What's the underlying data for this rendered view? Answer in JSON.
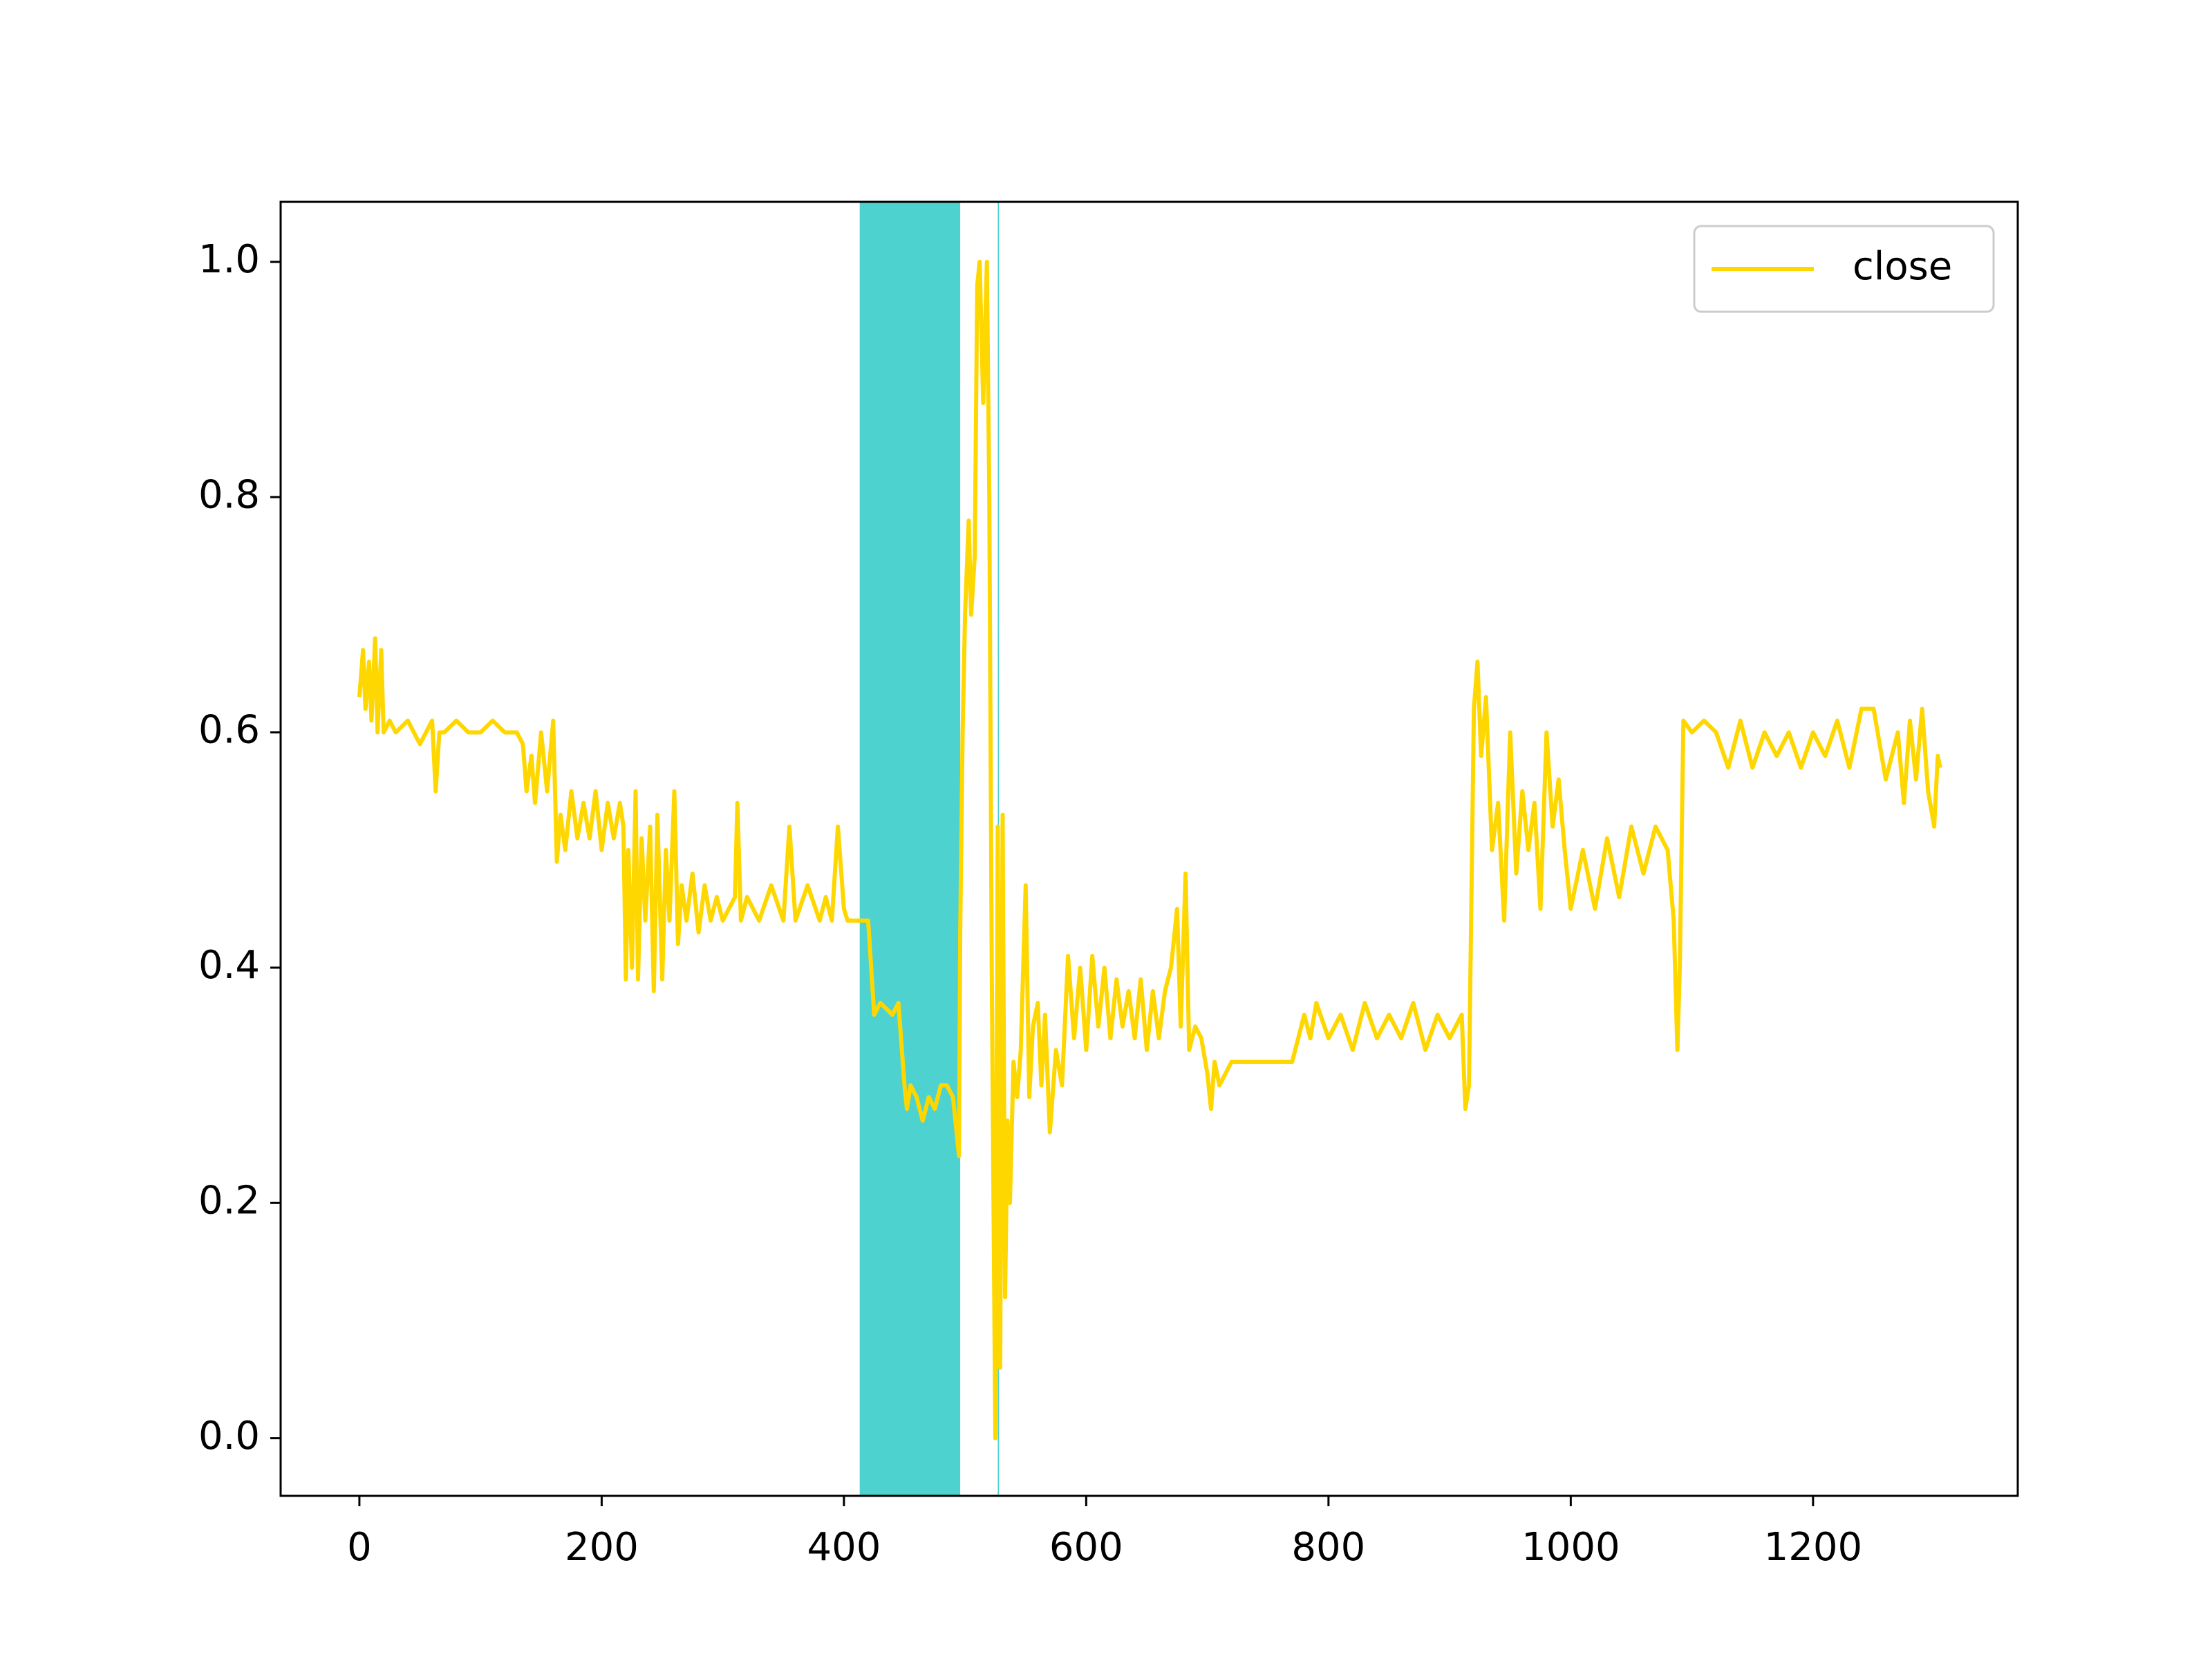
{
  "chart_data": {
    "type": "line",
    "x": [
      0,
      3,
      5,
      8,
      10,
      13,
      15,
      18,
      20,
      25,
      30,
      40,
      50,
      60,
      63,
      66,
      70,
      80,
      90,
      100,
      110,
      120,
      130,
      135,
      138,
      142,
      145,
      150,
      155,
      160,
      163,
      166,
      170,
      175,
      180,
      185,
      190,
      195,
      200,
      205,
      210,
      215,
      218,
      220,
      222,
      225,
      228,
      230,
      233,
      236,
      240,
      243,
      246,
      250,
      253,
      256,
      260,
      263,
      266,
      270,
      275,
      280,
      285,
      290,
      295,
      300,
      305,
      310,
      312,
      315,
      320,
      330,
      340,
      350,
      355,
      360,
      370,
      380,
      385,
      390,
      395,
      400,
      403,
      410,
      413,
      420,
      425,
      430,
      440,
      445,
      450,
      452,
      455,
      460,
      465,
      470,
      475,
      480,
      485,
      490,
      495,
      496,
      498,
      500,
      503,
      505,
      508,
      510,
      512,
      515,
      518,
      520,
      522,
      525,
      527,
      529,
      531,
      533,
      535,
      537,
      540,
      543,
      546,
      550,
      553,
      556,
      560,
      563,
      566,
      570,
      575,
      580,
      585,
      590,
      595,
      600,
      605,
      610,
      615,
      620,
      625,
      630,
      635,
      640,
      645,
      650,
      655,
      660,
      665,
      670,
      675,
      678,
      682,
      685,
      690,
      695,
      700,
      703,
      706,
      710,
      720,
      740,
      760,
      770,
      775,
      780,
      785,
      790,
      800,
      810,
      820,
      830,
      840,
      850,
      860,
      870,
      880,
      890,
      900,
      910,
      913,
      916,
      920,
      923,
      926,
      930,
      935,
      940,
      945,
      950,
      955,
      960,
      965,
      970,
      975,
      980,
      985,
      990,
      995,
      1000,
      1010,
      1020,
      1030,
      1040,
      1050,
      1060,
      1070,
      1080,
      1085,
      1088,
      1090,
      1093,
      1100,
      1110,
      1120,
      1130,
      1140,
      1150,
      1160,
      1170,
      1180,
      1190,
      1200,
      1210,
      1220,
      1230,
      1240,
      1250,
      1260,
      1270,
      1275,
      1280,
      1285,
      1290,
      1295,
      1300,
      1303,
      1305
    ],
    "series": [
      {
        "name": "close",
        "color": "#ffd700",
        "values": [
          0.63,
          0.67,
          0.62,
          0.66,
          0.61,
          0.68,
          0.6,
          0.67,
          0.6,
          0.61,
          0.6,
          0.61,
          0.59,
          0.61,
          0.55,
          0.6,
          0.6,
          0.61,
          0.6,
          0.6,
          0.61,
          0.6,
          0.6,
          0.59,
          0.55,
          0.58,
          0.54,
          0.6,
          0.55,
          0.61,
          0.49,
          0.53,
          0.5,
          0.55,
          0.51,
          0.54,
          0.51,
          0.55,
          0.5,
          0.54,
          0.51,
          0.54,
          0.52,
          0.39,
          0.5,
          0.4,
          0.55,
          0.39,
          0.51,
          0.44,
          0.52,
          0.38,
          0.53,
          0.39,
          0.5,
          0.44,
          0.55,
          0.42,
          0.47,
          0.44,
          0.48,
          0.43,
          0.47,
          0.44,
          0.46,
          0.44,
          0.45,
          0.46,
          0.54,
          0.44,
          0.46,
          0.44,
          0.47,
          0.44,
          0.52,
          0.44,
          0.47,
          0.44,
          0.46,
          0.44,
          0.52,
          0.45,
          0.44,
          0.44,
          0.44,
          0.44,
          0.36,
          0.37,
          0.36,
          0.37,
          0.3,
          0.28,
          0.3,
          0.29,
          0.27,
          0.29,
          0.28,
          0.3,
          0.3,
          0.29,
          0.24,
          0.43,
          0.6,
          0.7,
          0.78,
          0.7,
          0.75,
          0.98,
          1.0,
          0.88,
          1.0,
          0.8,
          0.4,
          0.0,
          0.52,
          0.06,
          0.53,
          0.12,
          0.27,
          0.2,
          0.32,
          0.29,
          0.33,
          0.47,
          0.29,
          0.35,
          0.37,
          0.3,
          0.36,
          0.26,
          0.33,
          0.3,
          0.41,
          0.34,
          0.4,
          0.33,
          0.41,
          0.35,
          0.4,
          0.34,
          0.39,
          0.35,
          0.38,
          0.34,
          0.39,
          0.33,
          0.38,
          0.34,
          0.38,
          0.4,
          0.45,
          0.35,
          0.48,
          0.33,
          0.35,
          0.34,
          0.31,
          0.28,
          0.32,
          0.3,
          0.32,
          0.32,
          0.32,
          0.32,
          0.34,
          0.36,
          0.34,
          0.37,
          0.34,
          0.36,
          0.33,
          0.37,
          0.34,
          0.36,
          0.34,
          0.37,
          0.33,
          0.36,
          0.34,
          0.36,
          0.28,
          0.3,
          0.62,
          0.66,
          0.58,
          0.63,
          0.5,
          0.54,
          0.44,
          0.6,
          0.48,
          0.55,
          0.5,
          0.54,
          0.45,
          0.6,
          0.52,
          0.56,
          0.5,
          0.45,
          0.5,
          0.45,
          0.51,
          0.46,
          0.52,
          0.48,
          0.52,
          0.5,
          0.44,
          0.33,
          0.4,
          0.61,
          0.6,
          0.61,
          0.6,
          0.57,
          0.61,
          0.57,
          0.6,
          0.58,
          0.6,
          0.57,
          0.6,
          0.58,
          0.61,
          0.57,
          0.62,
          0.62,
          0.56,
          0.6,
          0.54,
          0.61,
          0.56,
          0.62,
          0.55,
          0.52,
          0.58,
          0.57
        ]
      }
    ],
    "spans": [
      {
        "start": 413,
        "end": 496
      },
      {
        "start": 527,
        "end": 528
      }
    ],
    "span_color": "#4dd2d0",
    "xlim": [
      -65,
      1369
    ],
    "xticks": [
      0,
      200,
      400,
      600,
      800,
      1000,
      1200
    ],
    "ylim": [
      -0.049,
      1.051
    ],
    "yticks": [
      {
        "value": 0,
        "label": "0.0"
      },
      0.2,
      0.4,
      0.6,
      0.8,
      {
        "value": 1,
        "label": "1.0"
      }
    ],
    "legend": "upper right"
  }
}
